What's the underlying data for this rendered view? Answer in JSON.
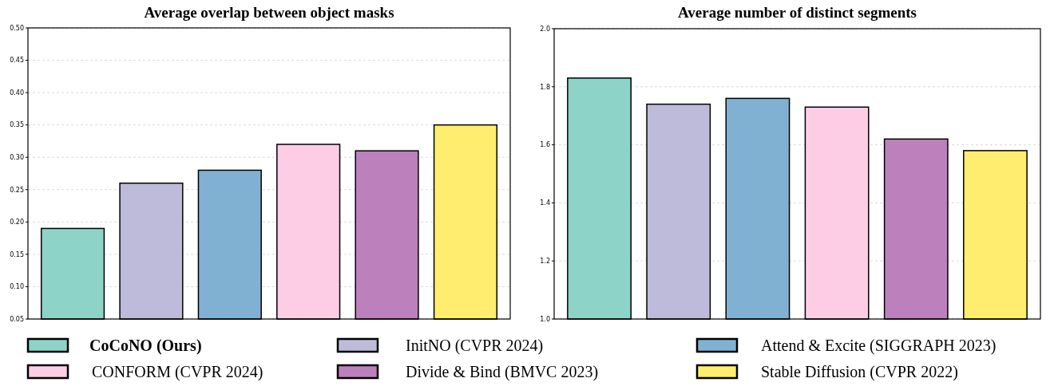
{
  "chart_data": [
    {
      "type": "bar",
      "title": "Average overlap between object masks",
      "categories": [
        null,
        null,
        null,
        null,
        null,
        null
      ],
      "series": [
        {
          "name": "CoCoNO (Ours)",
          "color": "#8dd3c7",
          "values": [
            0.19,
            null,
            null,
            null,
            null,
            null
          ]
        },
        {
          "name": "InitNO (CVPR 2024)",
          "color": "#bebada",
          "values": [
            null,
            0.26,
            null,
            null,
            null,
            null
          ]
        },
        {
          "name": "Attend & Excite (SIGGRAPH 2023)",
          "color": "#80b1d3",
          "values": [
            null,
            null,
            0.28,
            null,
            null,
            null
          ]
        },
        {
          "name": "CONFORM (CVPR 2024)",
          "color": "#fccde5",
          "values": [
            null,
            null,
            null,
            0.32,
            null,
            null
          ]
        },
        {
          "name": "Divide & Bind (BMVC 2023)",
          "color": "#bc80bd",
          "values": [
            null,
            null,
            null,
            null,
            0.31,
            null
          ]
        },
        {
          "name": "Stable Diffusion (CVPR 2022)",
          "color": "#ffed6f",
          "values": [
            null,
            null,
            null,
            null,
            null,
            0.35
          ]
        }
      ],
      "ylim": [
        0.05,
        0.5
      ],
      "yticks": [
        {
          "value": 0.05,
          "label": "0.05"
        },
        {
          "value": 0.1,
          "label": "0.10"
        },
        {
          "value": 0.15,
          "label": "0.15"
        },
        {
          "value": 0.2,
          "label": "0.20"
        },
        {
          "value": 0.25,
          "label": "0.25"
        },
        {
          "value": 0.3,
          "label": "0.30"
        },
        {
          "value": 0.35,
          "label": "0.35"
        },
        {
          "value": 0.4,
          "label": "0.40"
        },
        {
          "value": 0.45,
          "label": "0.45"
        },
        {
          "value": 0.5,
          "label": "0.50"
        }
      ],
      "grid": "y",
      "legend": "bottom"
    },
    {
      "type": "bar",
      "title": "Average number of distinct segments",
      "categories": [
        null,
        null,
        null,
        null,
        null,
        null
      ],
      "series": [
        {
          "color": "#8dd3c7",
          "values": [
            1.83,
            null,
            null,
            null,
            null,
            null
          ]
        },
        {
          "color": "#bebada",
          "values": [
            null,
            1.74,
            null,
            null,
            null,
            null
          ]
        },
        {
          "color": "#80b1d3",
          "values": [
            null,
            null,
            1.76,
            null,
            null,
            null
          ]
        },
        {
          "color": "#fccde5",
          "values": [
            null,
            null,
            null,
            1.73,
            null,
            null
          ]
        },
        {
          "color": "#bc80bd",
          "values": [
            null,
            null,
            null,
            null,
            1.62,
            null
          ]
        },
        {
          "color": "#ffed6f",
          "values": [
            null,
            null,
            null,
            null,
            null,
            1.58
          ]
        }
      ],
      "ylim": [
        1.0,
        2.0
      ],
      "yticks": [
        {
          "value": 1.0,
          "label": "1.0"
        },
        {
          "value": 1.2,
          "label": "1.2"
        },
        {
          "value": 1.4,
          "label": "1.4"
        },
        {
          "value": 1.6,
          "label": "1.6"
        },
        {
          "value": 1.8,
          "label": "1.8"
        },
        {
          "value": 2.0,
          "label": "2.0"
        }
      ],
      "grid": "y"
    }
  ]
}
